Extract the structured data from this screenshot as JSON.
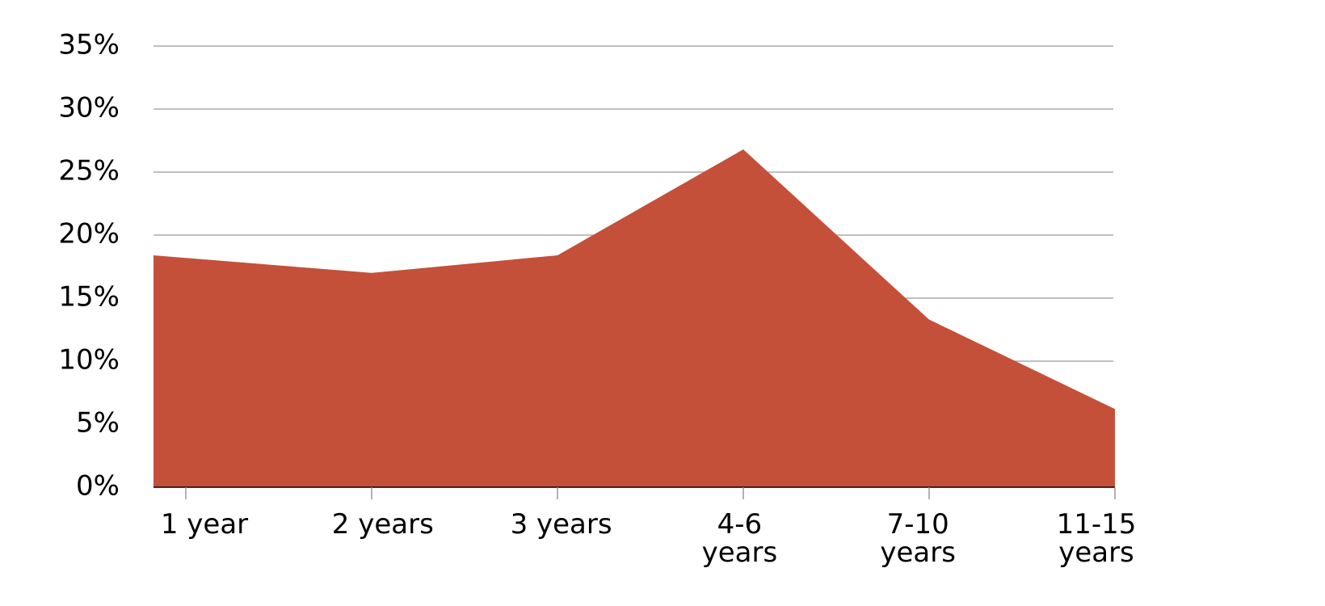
{
  "chart_data": {
    "type": "area",
    "categories": [
      "1 year",
      "2 years",
      "3 years",
      "4-6 years",
      "7-10 years",
      "11-15 years"
    ],
    "values": [
      18.4,
      17.0,
      18.4,
      26.8,
      13.3,
      6.2
    ],
    "color": "#c4503a",
    "ylim": [
      0,
      35
    ],
    "yticks": [
      {
        "value": 0,
        "label": "0%"
      },
      {
        "value": 5,
        "label": "5%"
      },
      {
        "value": 10,
        "label": "10%"
      },
      {
        "value": 15,
        "label": "15%"
      },
      {
        "value": 20,
        "label": "20%"
      },
      {
        "value": 25,
        "label": "25%"
      },
      {
        "value": 30,
        "label": "30%"
      },
      {
        "value": 35,
        "label": "35%"
      }
    ],
    "grid": true
  }
}
